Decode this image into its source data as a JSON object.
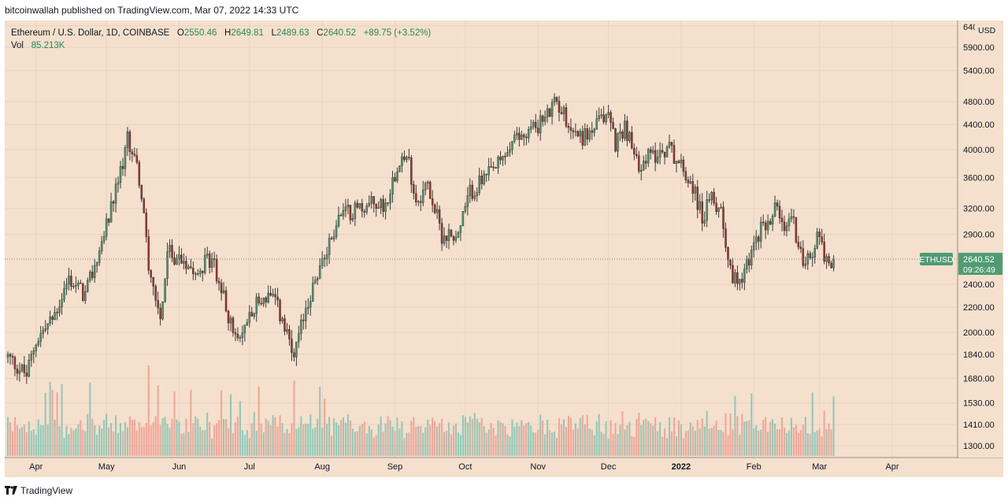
{
  "header": {
    "published_text": "bitcoinwallah published on TradingView.com, Mar 07, 2022 14:33 UTC"
  },
  "legend": {
    "symbol_text": "Ethereum / U.S. Dollar, 1D, COINBASE",
    "open_label": "O",
    "open": "2550.46",
    "high_label": "H",
    "high": "2649.81",
    "low_label": "L",
    "low": "2489.63",
    "close_label": "C",
    "close": "2640.52",
    "change": "+89.75 (+3.52%)",
    "vol_label": "Vol",
    "vol_value": "85.213K"
  },
  "price_badge": {
    "ticker": "ETHUSD",
    "price": "2640.52",
    "countdown": "09:26:49"
  },
  "footer": {
    "brand": "TradingView"
  },
  "colors": {
    "background": "#f4e0cd",
    "up": "#4a9a6e",
    "down": "#a3312a",
    "wick": "#3a3a3a",
    "vol_up": "#7fc4b4",
    "vol_down": "#f29a8e",
    "grid": "#e8d3bf",
    "badge": "#4f9c72"
  },
  "chart_data": {
    "type": "candlestick",
    "currency_label": "USD",
    "y_axis_ticks": [
      "6400.00",
      "5900.00",
      "5400.00",
      "4800.00",
      "4400.00",
      "4000.00",
      "3600.00",
      "3200.00",
      "2900.00",
      "2400.00",
      "2200.00",
      "2000.00",
      "1840.00",
      "1680.00",
      "1530.00",
      "1410.00",
      "1300.00"
    ],
    "x_axis_labels": [
      "Apr",
      "May",
      "Jun",
      "Jul",
      "Aug",
      "Sep",
      "Oct",
      "Nov",
      "Dec",
      "2022",
      "Feb",
      "Mar",
      "Apr"
    ],
    "y_scale": "log",
    "last_price": 2640.52,
    "close_path": [
      [
        "2021-03-20",
        1820
      ],
      [
        "2021-03-28",
        1700
      ],
      [
        "2021-04-01",
        1940
      ],
      [
        "2021-04-08",
        2100
      ],
      [
        "2021-04-15",
        2450
      ],
      [
        "2021-04-22",
        2300
      ],
      [
        "2021-04-29",
        2800
      ],
      [
        "2021-05-05",
        3400
      ],
      [
        "2021-05-10",
        4150
      ],
      [
        "2021-05-12",
        4000
      ],
      [
        "2021-05-15",
        3600
      ],
      [
        "2021-05-19",
        2600
      ],
      [
        "2021-05-22",
        2300
      ],
      [
        "2021-05-24",
        2100
      ],
      [
        "2021-05-27",
        2700
      ],
      [
        "2021-06-02",
        2650
      ],
      [
        "2021-06-09",
        2550
      ],
      [
        "2021-06-15",
        2650
      ],
      [
        "2021-06-21",
        2200
      ],
      [
        "2021-06-26",
        1900
      ],
      [
        "2021-07-02",
        2200
      ],
      [
        "2021-07-09",
        2300
      ],
      [
        "2021-07-13",
        2200
      ],
      [
        "2021-07-20",
        1800
      ],
      [
        "2021-07-25",
        2200
      ],
      [
        "2021-08-01",
        2600
      ],
      [
        "2021-08-08",
        3100
      ],
      [
        "2021-08-15",
        3200
      ],
      [
        "2021-08-22",
        3250
      ],
      [
        "2021-08-28",
        3250
      ],
      [
        "2021-09-03",
        3900
      ],
      [
        "2021-09-07",
        3800
      ],
      [
        "2021-09-10",
        3300
      ],
      [
        "2021-09-15",
        3500
      ],
      [
        "2021-09-21",
        2900
      ],
      [
        "2021-09-28",
        2900
      ],
      [
        "2021-10-03",
        3400
      ],
      [
        "2021-10-10",
        3600
      ],
      [
        "2021-10-16",
        3800
      ],
      [
        "2021-10-21",
        4100
      ],
      [
        "2021-10-28",
        4300
      ],
      [
        "2021-11-04",
        4500
      ],
      [
        "2021-11-09",
        4800
      ],
      [
        "2021-11-16",
        4300
      ],
      [
        "2021-11-20",
        4200
      ],
      [
        "2021-11-24",
        4300
      ],
      [
        "2021-12-01",
        4600
      ],
      [
        "2021-12-04",
        4100
      ],
      [
        "2021-12-08",
        4400
      ],
      [
        "2021-12-13",
        3800
      ],
      [
        "2021-12-19",
        3900
      ],
      [
        "2021-12-27",
        4050
      ],
      [
        "2022-01-01",
        3750
      ],
      [
        "2022-01-06",
        3500
      ],
      [
        "2022-01-10",
        3100
      ],
      [
        "2022-01-14",
        3300
      ],
      [
        "2022-01-18",
        3200
      ],
      [
        "2022-01-22",
        2500
      ],
      [
        "2022-01-26",
        2450
      ],
      [
        "2022-01-31",
        2700
      ],
      [
        "2022-02-05",
        3000
      ],
      [
        "2022-02-10",
        3200
      ],
      [
        "2022-02-14",
        2900
      ],
      [
        "2022-02-17",
        3150
      ],
      [
        "2022-02-22",
        2600
      ],
      [
        "2022-02-26",
        2700
      ],
      [
        "2022-03-01",
        2950
      ],
      [
        "2022-03-04",
        2600
      ],
      [
        "2022-03-07",
        2640
      ]
    ]
  }
}
